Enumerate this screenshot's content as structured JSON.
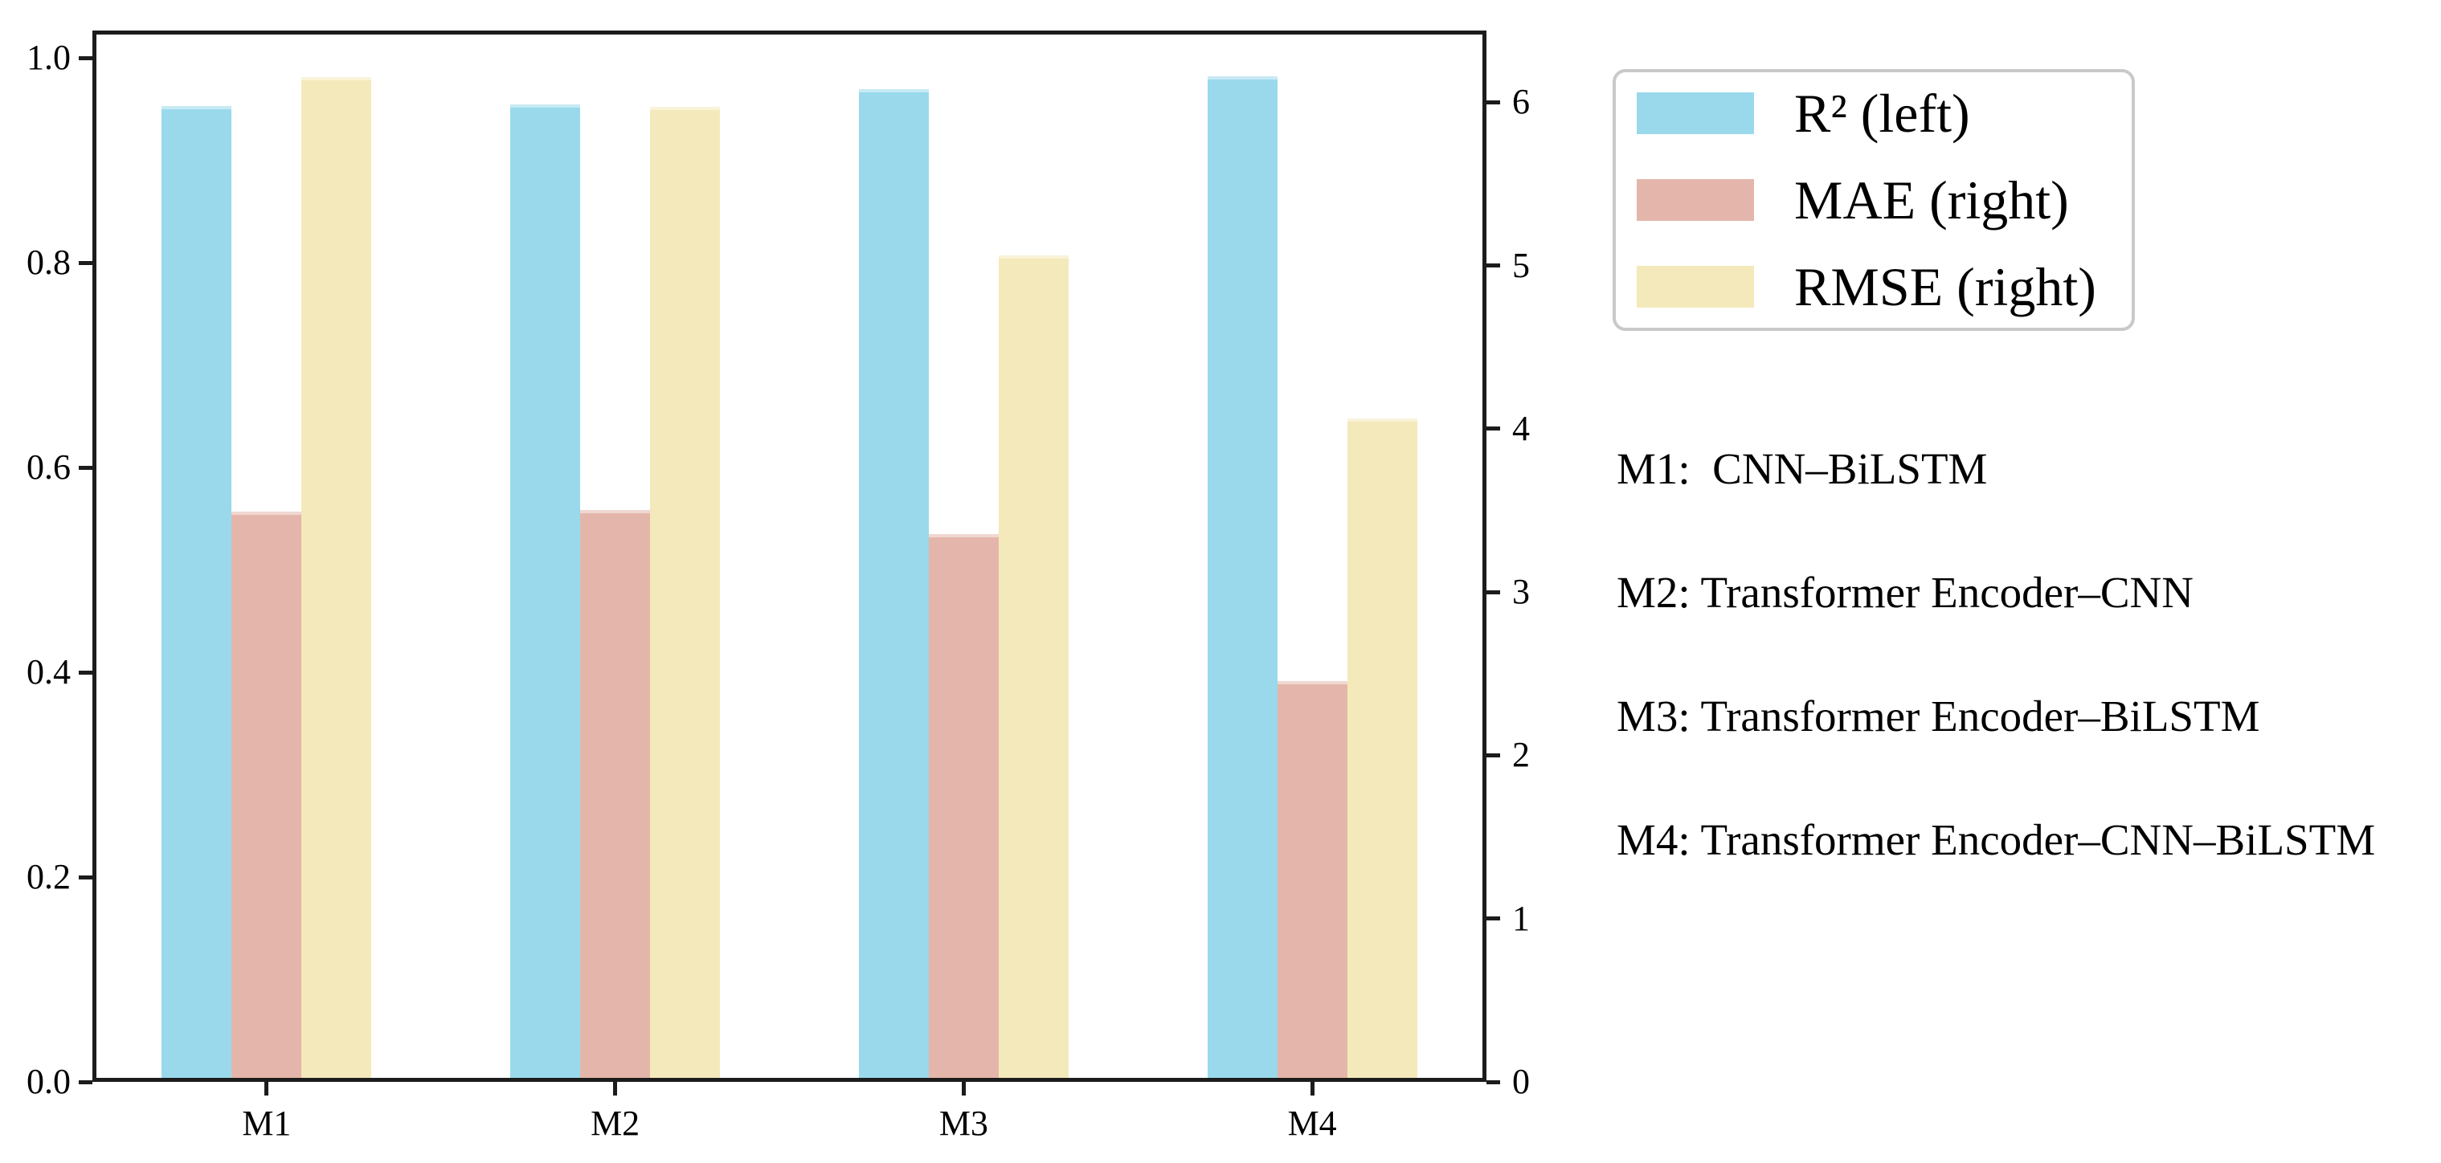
{
  "chart_data": {
    "type": "bar",
    "title": "",
    "xlabel": "",
    "ylabel_left": "",
    "ylabel_right": "",
    "grid": false,
    "categories": [
      "M1",
      "M2",
      "M3",
      "M4"
    ],
    "series": [
      {
        "name": "R² (left)",
        "axis": "left",
        "color": "#9ad9eb",
        "values": [
          0.949,
          0.951,
          0.966,
          0.978
        ]
      },
      {
        "name": "MAE (right)",
        "axis": "right",
        "color": "#e4b6ab",
        "values": [
          3.47,
          3.48,
          3.33,
          2.43
        ]
      },
      {
        "name": "RMSE (right)",
        "axis": "right",
        "color": "#f4e9bb",
        "values": [
          6.13,
          5.95,
          5.04,
          4.04
        ]
      }
    ],
    "left_axis": {
      "tick_labels": [
        "0.0",
        "0.2",
        "0.4",
        "0.6",
        "0.8",
        "1.0"
      ],
      "tick_values": [
        0,
        0.2,
        0.4,
        0.6,
        0.8,
        1.0
      ],
      "range": [
        0,
        1.027
      ]
    },
    "right_axis": {
      "tick_labels": [
        "0",
        "1",
        "2",
        "3",
        "4",
        "5",
        "6"
      ],
      "tick_values": [
        0,
        1,
        2,
        3,
        4,
        5,
        6
      ],
      "range": [
        0,
        6.44
      ]
    },
    "legend_position": "top-right outside plot",
    "bar_group_centers_fraction": [
      0.125,
      0.375,
      0.625,
      0.875
    ]
  },
  "legend": {
    "items": [
      {
        "label": "R² (left)",
        "color": "#9ad9eb"
      },
      {
        "label": "MAE (right)",
        "color": "#e4b6ab"
      },
      {
        "label": "RMSE (right)",
        "color": "#f4e9bb"
      }
    ]
  },
  "annotations": {
    "lines": [
      "M1:  CNN–BiLSTM",
      "M2: Transformer Encoder–CNN",
      "M3: Transformer Encoder–BiLSTM",
      "M4: Transformer Encoder–CNN–BiLSTM"
    ]
  },
  "colors": {
    "spine": "#1c1c1c",
    "text": "#000000",
    "legend_border": "#c9c9c9",
    "background": "#ffffff"
  }
}
